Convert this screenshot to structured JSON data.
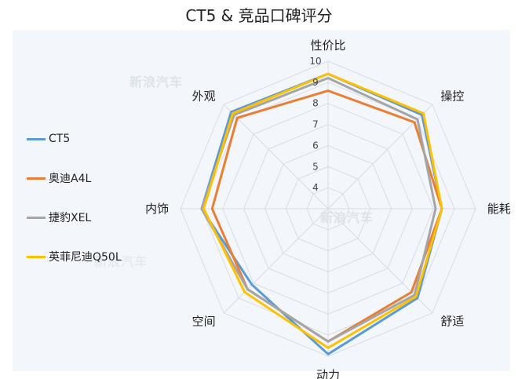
{
  "title": "CT5 & 竞品口碑评分",
  "watermark": "新浪汽车",
  "chart_data": {
    "type": "radar",
    "title": "CT5 & 竞品口碑评分",
    "axes": [
      "性价比",
      "操控",
      "能耗",
      "舒适",
      "动力",
      "空间",
      "内饰",
      "外观"
    ],
    "r_ticks": [
      "4",
      "5",
      "6",
      "7",
      "8",
      "9",
      "10"
    ],
    "r_range": [
      3,
      10
    ],
    "grid": true,
    "legend_position": "left",
    "series": [
      {
        "name": "CT5",
        "color": "#5b9bd5",
        "values": [
          9.4,
          9.3,
          8.4,
          9.0,
          9.9,
          8.1,
          9.0,
          9.5
        ]
      },
      {
        "name": "奥迪A4L",
        "color": "#ed7d31",
        "values": [
          8.6,
          8.8,
          8.4,
          8.6,
          9.3,
          8.4,
          8.5,
          9.1
        ]
      },
      {
        "name": "捷豹XEL",
        "color": "#a5a5a5",
        "values": [
          9.2,
          9.0,
          8.1,
          8.8,
          9.3,
          8.4,
          9.0,
          9.3
        ]
      },
      {
        "name": "英菲尼迪Q50L",
        "color": "#ffc000",
        "values": [
          9.4,
          9.4,
          8.4,
          8.9,
          9.6,
          8.6,
          8.9,
          9.4
        ]
      }
    ]
  }
}
